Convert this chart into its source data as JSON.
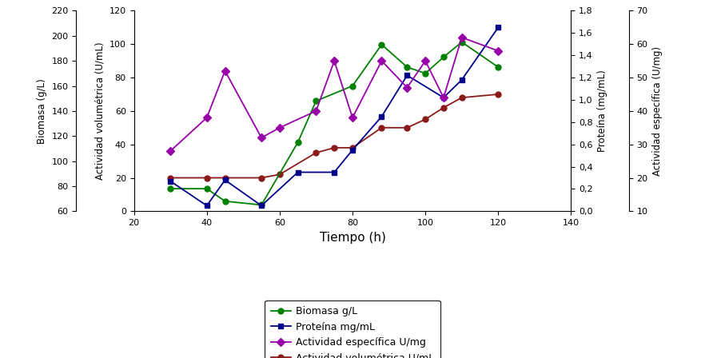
{
  "biomasa_t": [
    30,
    40,
    45,
    55,
    65,
    70,
    80,
    88,
    95,
    100,
    105,
    110,
    120
  ],
  "biomasa_v": [
    78,
    78,
    68,
    65,
    115,
    148,
    160,
    193,
    175,
    170,
    183,
    195,
    175
  ],
  "proteina_t": [
    30,
    40,
    45,
    55,
    65,
    75,
    80,
    88,
    95,
    105,
    110,
    120
  ],
  "proteina_v": [
    0.27,
    0.05,
    0.28,
    0.05,
    0.35,
    0.35,
    0.55,
    0.85,
    1.22,
    1.02,
    1.18,
    1.65
  ],
  "act_esp_t": [
    30,
    40,
    45,
    55,
    60,
    70,
    75,
    80,
    88,
    95,
    100,
    105,
    110,
    120
  ],
  "act_esp_v": [
    28,
    38,
    52,
    32,
    35,
    40,
    55,
    38,
    55,
    47,
    55,
    44,
    62,
    58
  ],
  "act_vol_t": [
    30,
    40,
    45,
    55,
    60,
    70,
    75,
    80,
    88,
    95,
    100,
    105,
    110,
    120
  ],
  "act_vol_v": [
    20,
    20,
    20,
    20,
    22,
    35,
    38,
    38,
    50,
    50,
    55,
    62,
    68,
    70
  ],
  "biomasa_color": "#008000",
  "proteina_color": "#00008B",
  "act_especifica_color": "#9900AA",
  "act_volumetrica_color": "#8B1A1A",
  "xlabel": "Tiempo (h)",
  "ylabel_actvol": "Actividad volumétrica (U/mL)",
  "ylabel_biomasa": "Biomasa (g/L)",
  "ylabel_proteina": "Proteína (mg/mL)",
  "ylabel_actesp": "Actividad específica (U/mg)",
  "legend_biomasa": "Biomasa g/L",
  "legend_proteina": "Proteína mg/mL",
  "legend_act_esp": "Actividad específica U/mg",
  "legend_act_vol": "Actividad volumétrica U/mL",
  "xlim": [
    20,
    140
  ],
  "ylim_actvol": [
    0,
    120
  ],
  "ylim_biomasa": [
    60,
    220
  ],
  "ylim_proteina": [
    0.0,
    1.8
  ],
  "ylim_actesp": [
    10,
    70
  ],
  "xticks": [
    20,
    40,
    60,
    80,
    100,
    120,
    140
  ],
  "yticks_actvol": [
    0,
    20,
    40,
    60,
    80,
    100,
    120
  ],
  "yticks_biomasa": [
    60,
    80,
    100,
    120,
    140,
    160,
    180,
    200,
    220
  ],
  "yticks_proteina": [
    0.0,
    0.2,
    0.4,
    0.6,
    0.8,
    1.0,
    1.2,
    1.4,
    1.6,
    1.8
  ],
  "yticks_actesp": [
    10,
    20,
    30,
    40,
    50,
    60,
    70
  ]
}
